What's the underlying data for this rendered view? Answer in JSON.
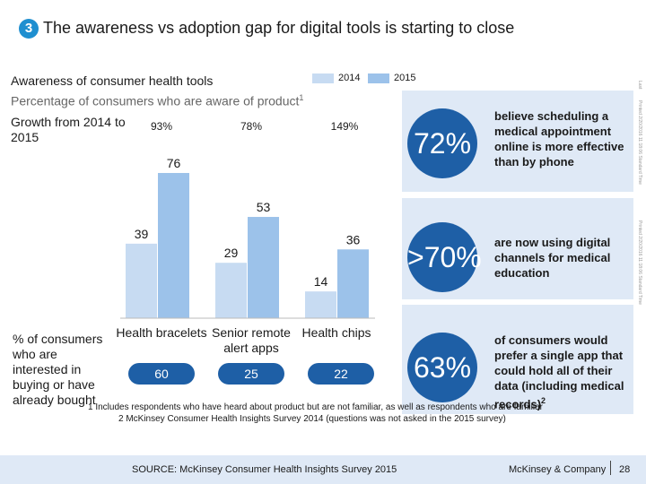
{
  "header": {
    "badge": "3",
    "title": "The awareness vs adoption gap for digital tools is starting to close"
  },
  "section": {
    "title": "Awareness of consumer health tools",
    "growth_label": "Growth from 2014 to 2015",
    "yaxis_label": "% of consumers who are interested in buying or have already bought"
  },
  "colors": {
    "bar_2014": "#c7dbf2",
    "bar_2015": "#9cc2ea",
    "accent": "#1e5fa6",
    "badge": "#1f8fd0"
  },
  "chart_data": {
    "type": "bar",
    "title": "Percentage of consumers who are aware of product",
    "title_sup": "1",
    "categories": [
      "Health bracelets",
      "Senior remote alert apps",
      "Health chips"
    ],
    "series": [
      {
        "name": "2014",
        "values": [
          39,
          29,
          14
        ]
      },
      {
        "name": "2015",
        "values": [
          76,
          53,
          36
        ]
      }
    ],
    "ylim": [
      0,
      76
    ],
    "growth": [
      "93%",
      "78%",
      "149%"
    ],
    "interested": [
      "60",
      "25",
      "22"
    ],
    "legend_position": "top"
  },
  "stats": [
    {
      "value": "72%",
      "text": "believe scheduling a medical appointment online is more effective than by phone",
      "sup": ""
    },
    {
      "value": ">70%",
      "text": "are now using digital channels for medical education",
      "sup": ""
    },
    {
      "value": "63%",
      "text": "of consumers would prefer a single app that could hold all of their data (including medical records)",
      "sup": "2"
    }
  ],
  "footnotes": [
    "1 Includes respondents who have heard about product but are not familiar, as well as respondents who are familiar",
    "2 McKinsey Consumer Health Insights Survey 2014 (questions was not asked in the 2015 survey)"
  ],
  "footer": {
    "source": "SOURCE: McKinsey Consumer Health Insights Survey 2015",
    "brand": "McKinsey & Company",
    "page": "28"
  },
  "side_marks": {
    "top": "Last",
    "middle": "Printed 2/20/2016 11:18:06 Standard Time",
    "lower": "Printed 2/20/2016 11:18:06 Standard Time"
  }
}
